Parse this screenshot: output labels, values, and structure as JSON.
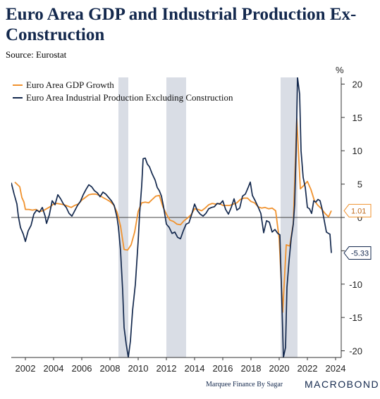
{
  "title": "Euro Area GDP and Industrial Production Ex-Construction",
  "subtitle": "Source: Eurostat",
  "footer": {
    "credit": "Marquee Finance By Sagar",
    "brand": "MACROBOND"
  },
  "colors": {
    "gdp": "#f0922e",
    "ip": "#13284d",
    "recession": "#d9dde5",
    "zero": "#444444"
  },
  "chart_data": {
    "type": "line",
    "y_unit": "%",
    "ylim": [
      -21,
      21
    ],
    "yticks": [
      20,
      15,
      10,
      5,
      0,
      -5,
      -10,
      -15,
      -20
    ],
    "xlim": [
      2001.0,
      2024.4
    ],
    "xticks": [
      2002,
      2004,
      2006,
      2008,
      2010,
      2012,
      2014,
      2016,
      2018,
      2020,
      2022,
      2024
    ],
    "recession_bands": [
      [
        2008.6,
        2009.3
      ],
      [
        2012.0,
        2013.4
      ],
      [
        2020.1,
        2021.3
      ]
    ],
    "legend_position": "top-left",
    "series": [
      {
        "name": "Euro Area GDP Growth",
        "key": "gdp",
        "last_value_label": "1.01",
        "points": [
          [
            2001.25,
            5.3
          ],
          [
            2001.4,
            5.0
          ],
          [
            2001.6,
            4.6
          ],
          [
            2001.75,
            3.0
          ],
          [
            2001.9,
            2.3
          ],
          [
            2002.0,
            1.2
          ],
          [
            2002.25,
            1.2
          ],
          [
            2002.5,
            1.1
          ],
          [
            2002.75,
            1.2
          ],
          [
            2003.0,
            0.9
          ],
          [
            2003.25,
            1.0
          ],
          [
            2003.5,
            1.3
          ],
          [
            2003.75,
            1.6
          ],
          [
            2004.0,
            2.0
          ],
          [
            2004.25,
            2.1
          ],
          [
            2004.5,
            2.0
          ],
          [
            2004.75,
            1.9
          ],
          [
            2005.0,
            1.7
          ],
          [
            2005.25,
            1.5
          ],
          [
            2005.5,
            1.8
          ],
          [
            2005.75,
            2.0
          ],
          [
            2006.0,
            2.6
          ],
          [
            2006.25,
            3.0
          ],
          [
            2006.5,
            3.4
          ],
          [
            2006.75,
            3.5
          ],
          [
            2007.0,
            3.5
          ],
          [
            2007.25,
            3.3
          ],
          [
            2007.5,
            3.0
          ],
          [
            2007.75,
            2.7
          ],
          [
            2008.0,
            2.4
          ],
          [
            2008.25,
            1.9
          ],
          [
            2008.5,
            0.8
          ],
          [
            2008.75,
            -1.3
          ],
          [
            2009.0,
            -4.8
          ],
          [
            2009.25,
            -4.9
          ],
          [
            2009.5,
            -4.1
          ],
          [
            2009.75,
            -2.2
          ],
          [
            2010.0,
            0.9
          ],
          [
            2010.25,
            2.2
          ],
          [
            2010.5,
            2.3
          ],
          [
            2010.75,
            2.2
          ],
          [
            2011.0,
            2.7
          ],
          [
            2011.25,
            3.2
          ],
          [
            2011.5,
            3.3
          ],
          [
            2011.75,
            1.6
          ],
          [
            2012.0,
            0.5
          ],
          [
            2012.25,
            -0.4
          ],
          [
            2012.5,
            -0.6
          ],
          [
            2012.75,
            -1.0
          ],
          [
            2013.0,
            -1.1
          ],
          [
            2013.25,
            -0.5
          ],
          [
            2013.5,
            -0.1
          ],
          [
            2013.75,
            0.4
          ],
          [
            2014.0,
            1.3
          ],
          [
            2014.25,
            1.2
          ],
          [
            2014.5,
            1.0
          ],
          [
            2014.75,
            1.4
          ],
          [
            2015.0,
            1.9
          ],
          [
            2015.25,
            2.1
          ],
          [
            2015.5,
            2.0
          ],
          [
            2015.75,
            2.1
          ],
          [
            2016.0,
            1.8
          ],
          [
            2016.25,
            1.8
          ],
          [
            2016.5,
            1.8
          ],
          [
            2016.75,
            2.0
          ],
          [
            2017.0,
            2.2
          ],
          [
            2017.25,
            2.7
          ],
          [
            2017.5,
            2.9
          ],
          [
            2017.75,
            2.9
          ],
          [
            2018.0,
            2.4
          ],
          [
            2018.25,
            2.2
          ],
          [
            2018.5,
            1.6
          ],
          [
            2018.75,
            1.4
          ],
          [
            2019.0,
            1.5
          ],
          [
            2019.25,
            1.3
          ],
          [
            2019.5,
            1.4
          ],
          [
            2019.75,
            1.0
          ],
          [
            2020.0,
            -3.2
          ],
          [
            2020.25,
            -14.2
          ],
          [
            2020.5,
            -4.1
          ],
          [
            2020.75,
            -4.3
          ],
          [
            2021.0,
            -0.9
          ],
          [
            2021.25,
            14.8
          ],
          [
            2021.5,
            4.3
          ],
          [
            2021.75,
            4.8
          ],
          [
            2022.0,
            5.4
          ],
          [
            2022.25,
            4.2
          ],
          [
            2022.5,
            2.5
          ],
          [
            2022.75,
            1.8
          ],
          [
            2023.0,
            1.3
          ],
          [
            2023.25,
            0.6
          ],
          [
            2023.5,
            0.1
          ],
          [
            2023.7,
            1.01
          ]
        ]
      },
      {
        "name": "Euro Area Industrial Production Excluding Construction",
        "key": "ip",
        "last_value_label": "-5.33",
        "points": [
          [
            2001.0,
            5.2
          ],
          [
            2001.2,
            3.5
          ],
          [
            2001.4,
            2.0
          ],
          [
            2001.5,
            0.2
          ],
          [
            2001.65,
            -1.5
          ],
          [
            2001.85,
            -2.5
          ],
          [
            2002.0,
            -3.6
          ],
          [
            2002.2,
            -2.0
          ],
          [
            2002.4,
            -1.2
          ],
          [
            2002.6,
            0.5
          ],
          [
            2002.8,
            1.1
          ],
          [
            2003.0,
            0.8
          ],
          [
            2003.2,
            1.5
          ],
          [
            2003.4,
            0.2
          ],
          [
            2003.5,
            -0.9
          ],
          [
            2003.7,
            0.4
          ],
          [
            2003.9,
            2.5
          ],
          [
            2004.1,
            1.9
          ],
          [
            2004.3,
            3.4
          ],
          [
            2004.5,
            2.8
          ],
          [
            2004.7,
            2.0
          ],
          [
            2004.9,
            1.5
          ],
          [
            2005.1,
            0.6
          ],
          [
            2005.3,
            0.2
          ],
          [
            2005.5,
            1.0
          ],
          [
            2005.7,
            1.8
          ],
          [
            2005.9,
            2.4
          ],
          [
            2006.1,
            3.4
          ],
          [
            2006.3,
            4.2
          ],
          [
            2006.5,
            4.9
          ],
          [
            2006.7,
            4.6
          ],
          [
            2006.9,
            4.0
          ],
          [
            2007.1,
            3.7
          ],
          [
            2007.3,
            3.1
          ],
          [
            2007.5,
            3.8
          ],
          [
            2007.7,
            3.5
          ],
          [
            2007.9,
            3.0
          ],
          [
            2008.1,
            2.5
          ],
          [
            2008.3,
            1.8
          ],
          [
            2008.5,
            0.0
          ],
          [
            2008.6,
            -1.5
          ],
          [
            2008.75,
            -5.0
          ],
          [
            2008.9,
            -11.0
          ],
          [
            2009.0,
            -16.5
          ],
          [
            2009.15,
            -19.0
          ],
          [
            2009.3,
            -21.0
          ],
          [
            2009.45,
            -18.5
          ],
          [
            2009.6,
            -14.0
          ],
          [
            2009.8,
            -10.0
          ],
          [
            2010.0,
            -3.5
          ],
          [
            2010.1,
            0.5
          ],
          [
            2010.25,
            4.8
          ],
          [
            2010.35,
            8.8
          ],
          [
            2010.5,
            8.9
          ],
          [
            2010.65,
            8.0
          ],
          [
            2010.8,
            7.6
          ],
          [
            2011.0,
            6.5
          ],
          [
            2011.2,
            5.6
          ],
          [
            2011.35,
            4.5
          ],
          [
            2011.5,
            4.0
          ],
          [
            2011.65,
            3.2
          ],
          [
            2011.8,
            1.6
          ],
          [
            2012.0,
            -1.0
          ],
          [
            2012.2,
            -1.5
          ],
          [
            2012.4,
            -2.4
          ],
          [
            2012.6,
            -2.2
          ],
          [
            2012.8,
            -3.0
          ],
          [
            2013.0,
            -3.2
          ],
          [
            2013.2,
            -2.0
          ],
          [
            2013.4,
            -1.0
          ],
          [
            2013.6,
            -0.8
          ],
          [
            2013.8,
            0.5
          ],
          [
            2014.0,
            2.0
          ],
          [
            2014.2,
            1.0
          ],
          [
            2014.4,
            0.5
          ],
          [
            2014.6,
            0.2
          ],
          [
            2014.8,
            0.6
          ],
          [
            2015.0,
            1.3
          ],
          [
            2015.2,
            1.5
          ],
          [
            2015.4,
            1.6
          ],
          [
            2015.6,
            2.1
          ],
          [
            2015.8,
            2.0
          ],
          [
            2016.0,
            2.5
          ],
          [
            2016.2,
            1.2
          ],
          [
            2016.4,
            0.5
          ],
          [
            2016.6,
            1.5
          ],
          [
            2016.8,
            2.8
          ],
          [
            2017.0,
            1.1
          ],
          [
            2017.2,
            1.4
          ],
          [
            2017.4,
            3.2
          ],
          [
            2017.6,
            3.5
          ],
          [
            2017.8,
            4.5
          ],
          [
            2017.95,
            5.3
          ],
          [
            2018.1,
            3.3
          ],
          [
            2018.3,
            2.5
          ],
          [
            2018.5,
            1.6
          ],
          [
            2018.7,
            0.6
          ],
          [
            2018.9,
            -2.3
          ],
          [
            2019.1,
            -0.5
          ],
          [
            2019.3,
            -0.7
          ],
          [
            2019.5,
            -2.2
          ],
          [
            2019.7,
            -1.8
          ],
          [
            2019.9,
            -2.4
          ],
          [
            2020.05,
            -2.6
          ],
          [
            2020.2,
            -13.5
          ],
          [
            2020.3,
            -21.0
          ],
          [
            2020.45,
            -19.5
          ],
          [
            2020.55,
            -10.5
          ],
          [
            2020.7,
            -6.5
          ],
          [
            2020.85,
            -3.2
          ],
          [
            2021.0,
            -1.0
          ],
          [
            2021.1,
            2.0
          ],
          [
            2021.2,
            10.0
          ],
          [
            2021.3,
            21.0
          ],
          [
            2021.45,
            18.5
          ],
          [
            2021.55,
            10.0
          ],
          [
            2021.7,
            6.0
          ],
          [
            2021.85,
            4.5
          ],
          [
            2022.0,
            1.5
          ],
          [
            2022.15,
            1.3
          ],
          [
            2022.3,
            0.6
          ],
          [
            2022.45,
            2.5
          ],
          [
            2022.6,
            2.3
          ],
          [
            2022.75,
            2.7
          ],
          [
            2022.9,
            2.5
          ],
          [
            2023.05,
            1.2
          ],
          [
            2023.2,
            -0.5
          ],
          [
            2023.35,
            -2.2
          ],
          [
            2023.5,
            -2.4
          ],
          [
            2023.6,
            -2.5
          ],
          [
            2023.7,
            -5.33
          ]
        ]
      }
    ]
  }
}
